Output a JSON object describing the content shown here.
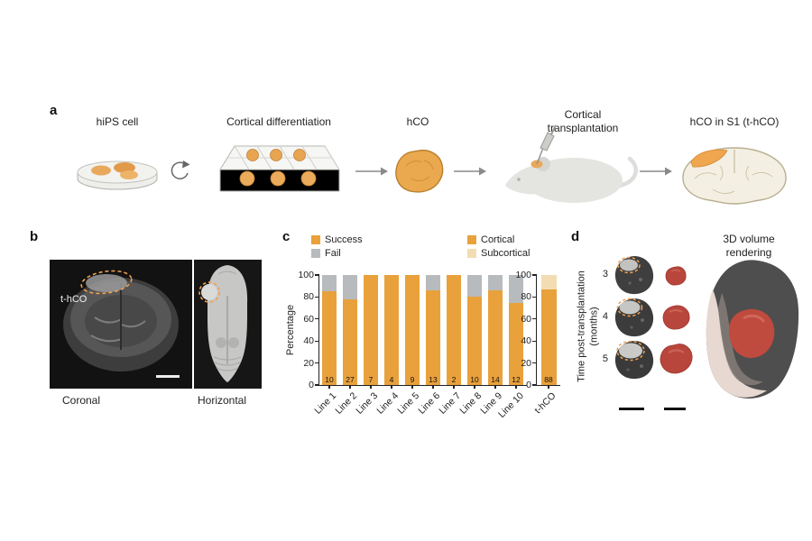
{
  "panel_a": {
    "label": "a",
    "steps": [
      {
        "title": "hiPS cell"
      },
      {
        "title": "Cortical differentiation"
      },
      {
        "title": "hCO"
      },
      {
        "title": "Cortical transplantation"
      },
      {
        "title": "hCO in S1 (t-hCO)"
      }
    ]
  },
  "panel_b": {
    "label": "b",
    "annotation": "t-hCO",
    "caption_left": "Coronal",
    "caption_right": "Horizontal"
  },
  "panel_c": {
    "label": "c"
  },
  "panel_d": {
    "label": "d",
    "title": "3D volume rendering",
    "ylabel_line1": "Time post-transplantation",
    "ylabel_line2": "(months)",
    "timepoints": [
      "3",
      "4",
      "5"
    ]
  },
  "colors": {
    "success": "#E9A13B",
    "fail": "#B7BBBD",
    "cortical": "#E9A13B",
    "subcortical": "#F3DCB2",
    "graft_outline": "#F0A050",
    "render_red": "#B8463C"
  },
  "chart_data": [
    {
      "type": "bar",
      "stacked": true,
      "title": "",
      "xlabel": "",
      "ylabel": "Percentage",
      "ylim": [
        0,
        100
      ],
      "yticks": [
        0,
        20,
        40,
        60,
        80,
        100
      ],
      "grid": false,
      "legend_position": "top",
      "categories": [
        "Line 1",
        "Line 2",
        "Line 3",
        "Line 4",
        "Line 5",
        "Line 6",
        "Line 7",
        "Line 8",
        "Line 9",
        "Line 10"
      ],
      "series": [
        {
          "name": "Success",
          "color": "#E9A13B",
          "values": [
            85,
            78,
            100,
            100,
            100,
            86,
            100,
            80,
            86,
            75
          ]
        },
        {
          "name": "Fail",
          "color": "#B7BBBD",
          "values": [
            15,
            22,
            0,
            0,
            0,
            14,
            0,
            20,
            14,
            25
          ]
        }
      ],
      "n_labels": [
        10,
        27,
        7,
        4,
        9,
        13,
        2,
        10,
        14,
        12
      ]
    },
    {
      "type": "bar",
      "stacked": true,
      "title": "",
      "xlabel": "",
      "ylabel": "",
      "ylim": [
        0,
        100
      ],
      "yticks": [
        0,
        20,
        40,
        60,
        80,
        100
      ],
      "grid": false,
      "legend_position": "top",
      "categories": [
        "t-hCO"
      ],
      "series": [
        {
          "name": "Cortical",
          "color": "#E9A13B",
          "values": [
            87
          ]
        },
        {
          "name": "Subcortical",
          "color": "#F3DCB2",
          "values": [
            13
          ]
        }
      ],
      "n_labels": [
        88
      ]
    }
  ]
}
